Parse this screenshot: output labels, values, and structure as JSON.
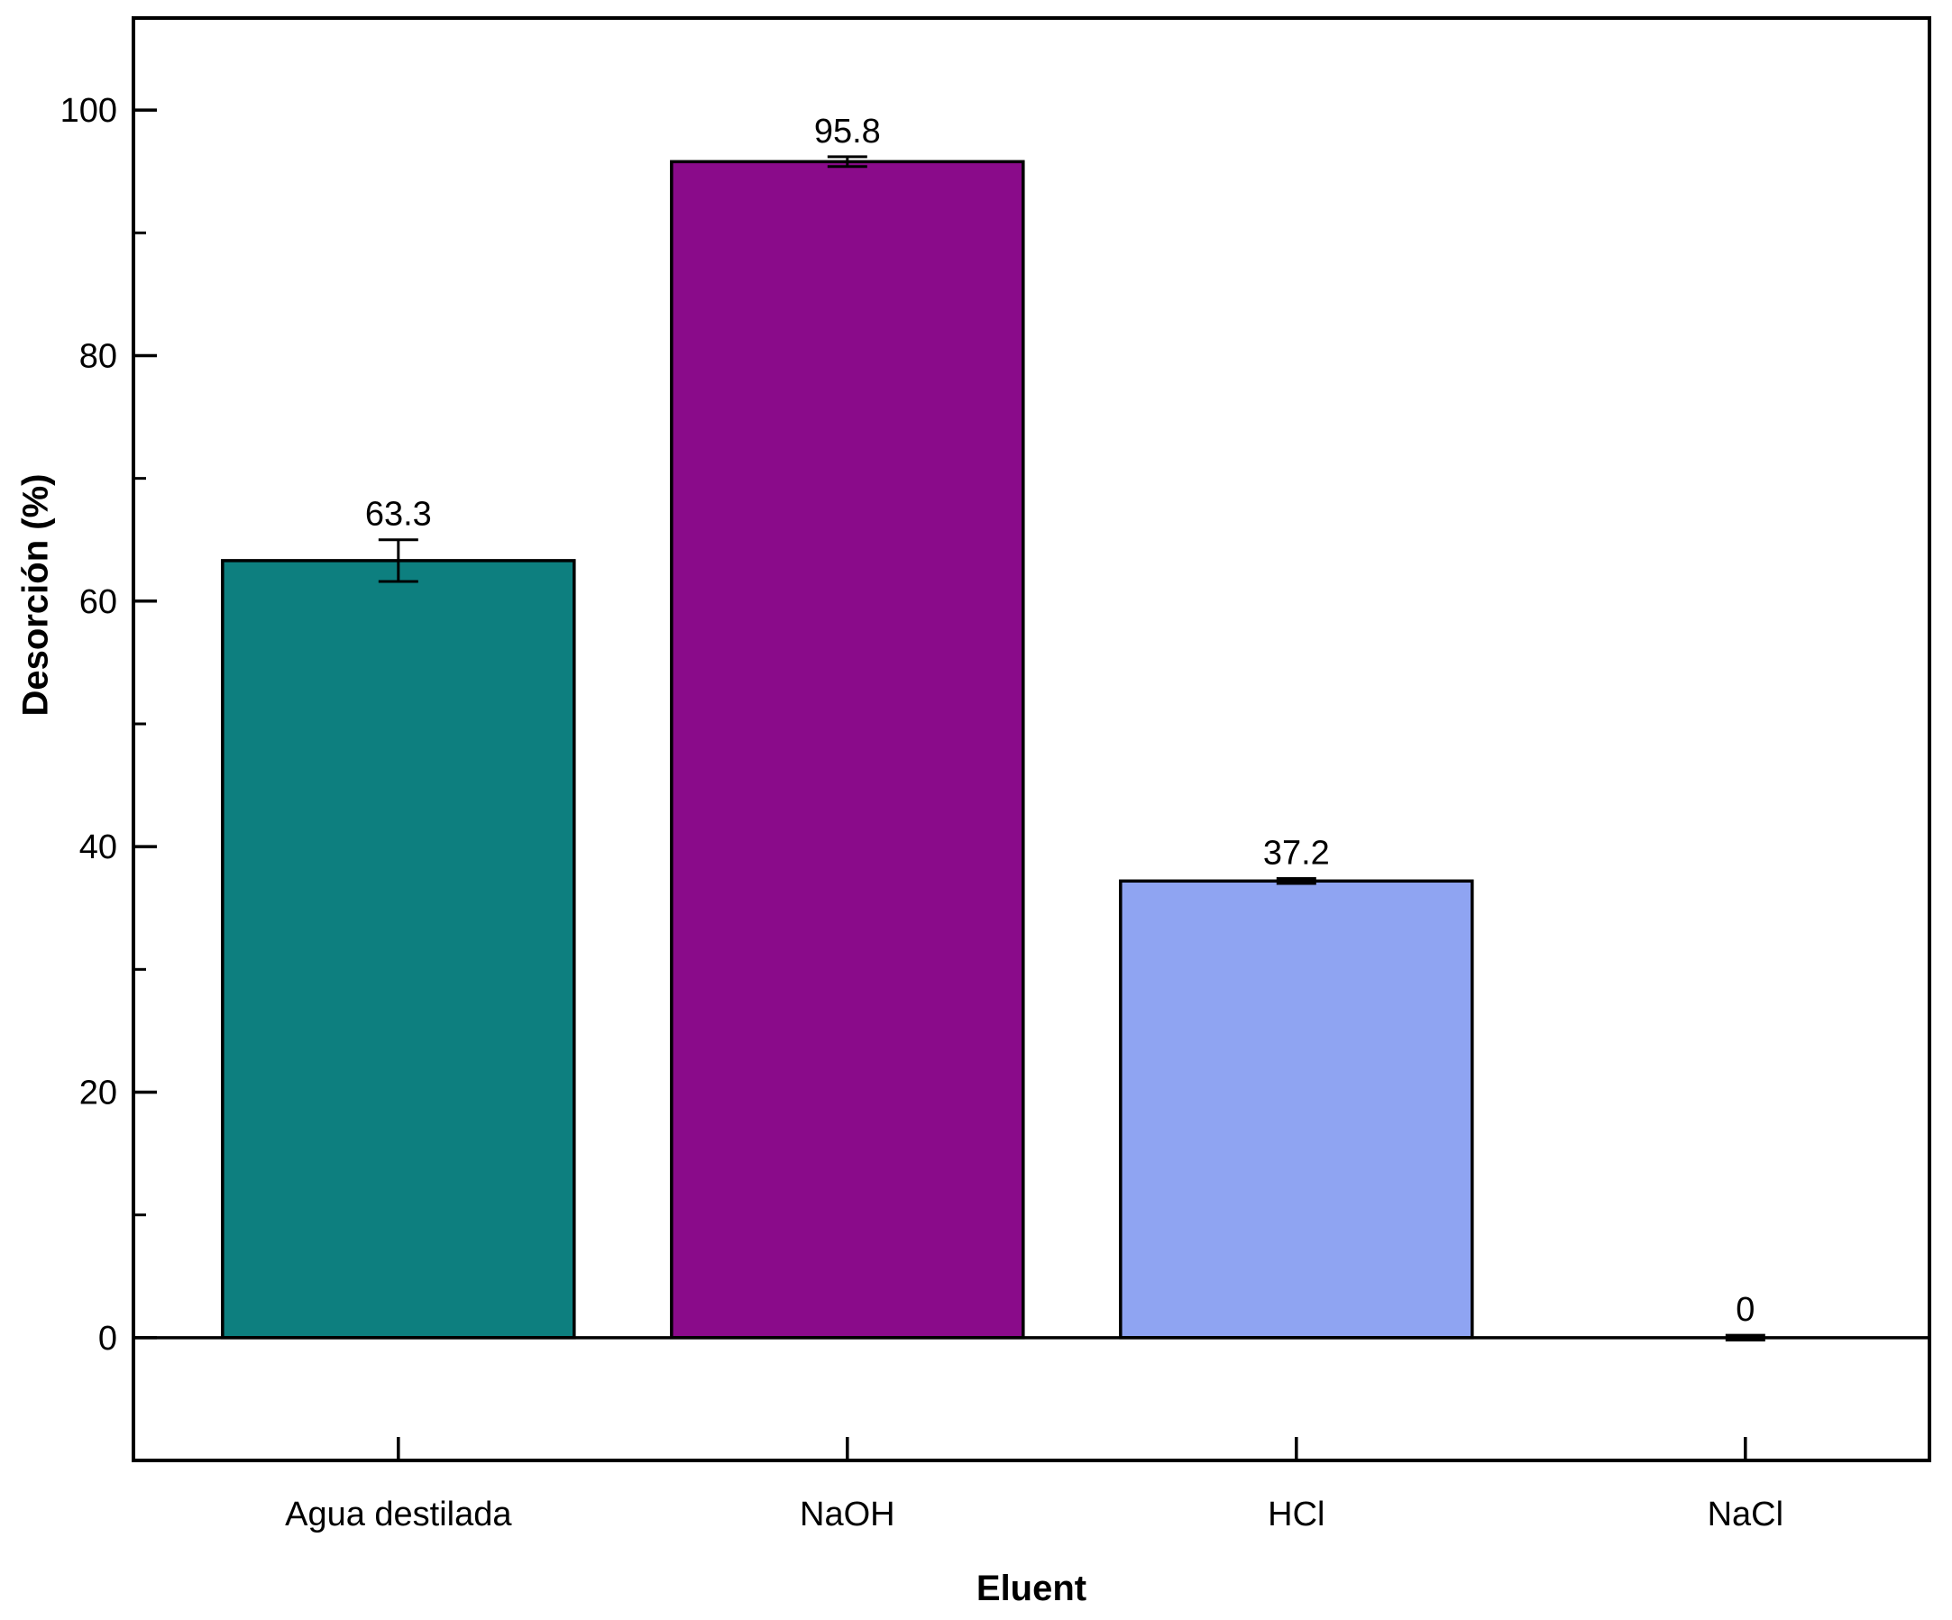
{
  "chart_data": {
    "type": "bar",
    "title": "",
    "xlabel": "Eluent",
    "ylabel": "Desorción (%)",
    "categories": [
      "Agua destilada",
      "NaOH",
      "HCl",
      "NaCl"
    ],
    "values": [
      63.3,
      95.8,
      37.2,
      0
    ],
    "errors": [
      1.7,
      0.4,
      0.2,
      0.2
    ],
    "bar_labels": [
      "63.3",
      "95.8",
      "37.2",
      "0"
    ],
    "bar_colors": [
      "#0d7f7f",
      "#8a0b8a",
      "#8fa4f2",
      "#8fa4f2"
    ],
    "bar_outline_color": "#000000",
    "axis_color": "#000000",
    "background_color": "#ffffff",
    "ylim": [
      -10,
      107.5
    ],
    "yticks": [
      0,
      20,
      40,
      60,
      80,
      100
    ],
    "minor_tick_step": 10,
    "grid": false,
    "legend": "none",
    "frame": "box"
  }
}
